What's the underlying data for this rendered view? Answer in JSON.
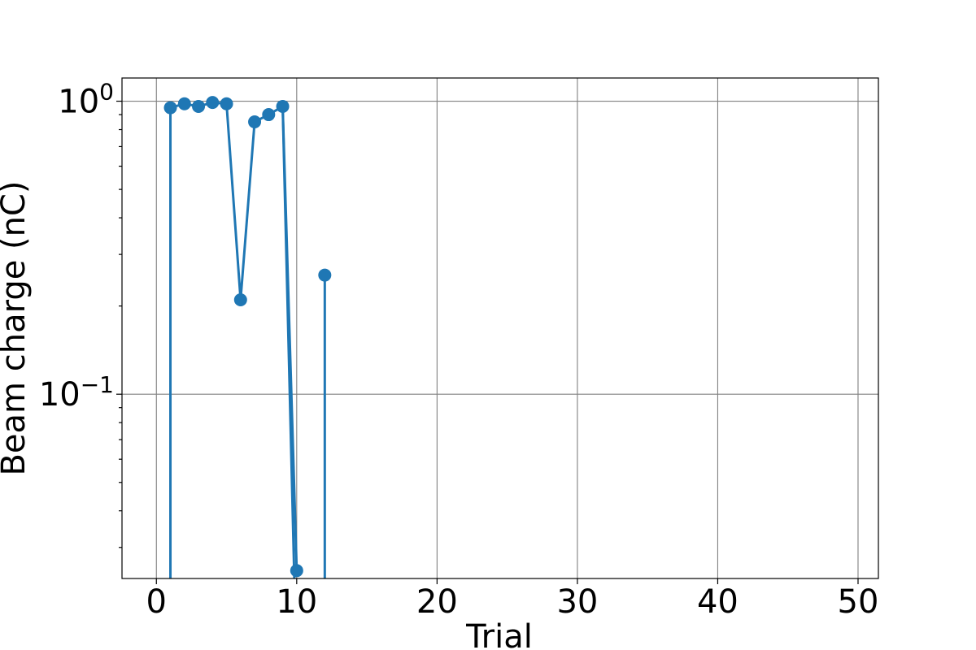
{
  "chart_data": {
    "type": "line",
    "title": "",
    "xlabel": "Trial",
    "ylabel": "Beam charge (nC)",
    "yscale": "log",
    "grid": true,
    "xlim": [
      -2.45,
      51.45
    ],
    "ylim": [
      0.0235,
      1.2
    ],
    "xticks": [
      0,
      10,
      20,
      30,
      40,
      50
    ],
    "xtick_labels": [
      "0",
      "10",
      "20",
      "30",
      "40",
      "50"
    ],
    "yticks": [
      1.0,
      0.1
    ],
    "ytick_labels": [
      {
        "base": "10",
        "exp": "0"
      },
      {
        "base": "10",
        "exp": "−1"
      }
    ],
    "color": "#1f77b4",
    "series": [
      {
        "marker": "circle",
        "points": [
          {
            "x": 1,
            "y": 0.95
          },
          {
            "x": 2,
            "y": 0.98
          },
          {
            "x": 3,
            "y": 0.96
          },
          {
            "x": 4,
            "y": 0.99
          },
          {
            "x": 5,
            "y": 0.98
          },
          {
            "x": 6,
            "y": 0.21
          },
          {
            "x": 7,
            "y": 0.85
          },
          {
            "x": 8,
            "y": 0.9
          },
          {
            "x": 9,
            "y": 0.96
          },
          {
            "x": 10,
            "y": 0.025
          },
          {
            "x": 12,
            "y": 0.255
          }
        ],
        "segments": [
          {
            "from": {
              "x": 1,
              "y": 0
            },
            "to": {
              "x": 1,
              "y": 0.95
            }
          },
          {
            "from": {
              "x": 9,
              "y": 0.96
            },
            "to": {
              "x": 10,
              "y": 0
            }
          },
          {
            "from": {
              "x": 12,
              "y": 0
            },
            "to": {
              "x": 12,
              "y": 0.255
            }
          }
        ],
        "line_runs": [
          [
            1,
            2,
            3,
            4,
            5,
            6,
            7,
            8,
            9,
            10
          ]
        ]
      }
    ]
  }
}
